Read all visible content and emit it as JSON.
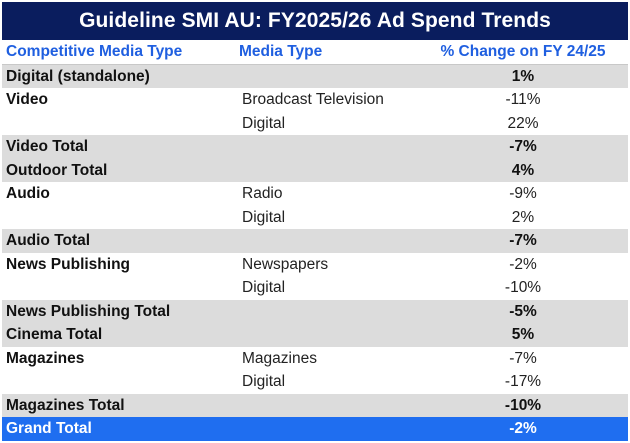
{
  "title": "Guideline SMI AU: FY2025/26 Ad Spend Trends",
  "columns": [
    "Competitive Media Type",
    "Media Type",
    "% Change on FY 24/25"
  ],
  "rows": [
    {
      "type": "total",
      "cells": [
        "Digital (standalone)",
        "",
        "1%"
      ]
    },
    {
      "type": "item",
      "cells": [
        "Video",
        "Broadcast Television",
        "-11%"
      ]
    },
    {
      "type": "item",
      "cells": [
        "",
        "Digital",
        "22%"
      ]
    },
    {
      "type": "total",
      "cells": [
        "Video Total",
        "",
        "-7%"
      ]
    },
    {
      "type": "total",
      "cells": [
        "Outdoor Total",
        "",
        "4%"
      ]
    },
    {
      "type": "item",
      "cells": [
        "Audio",
        "Radio",
        "-9%"
      ]
    },
    {
      "type": "item",
      "cells": [
        "",
        "Digital",
        "2%"
      ]
    },
    {
      "type": "total",
      "cells": [
        "Audio Total",
        "",
        "-7%"
      ]
    },
    {
      "type": "item",
      "cells": [
        "News Publishing",
        "Newspapers",
        "-2%"
      ]
    },
    {
      "type": "item",
      "cells": [
        "",
        "Digital",
        "-10%"
      ]
    },
    {
      "type": "total",
      "cells": [
        "News Publishing Total",
        "",
        "-5%"
      ]
    },
    {
      "type": "total",
      "cells": [
        "Cinema Total",
        "",
        "5%"
      ]
    },
    {
      "type": "item",
      "cells": [
        "Magazines",
        "Magazines",
        "-7%"
      ]
    },
    {
      "type": "item",
      "cells": [
        "",
        "Digital",
        "-17%"
      ]
    },
    {
      "type": "total",
      "cells": [
        "Magazines Total",
        "",
        "-10%"
      ]
    },
    {
      "type": "grand",
      "cells": [
        "Grand Total",
        "",
        "-2%"
      ]
    }
  ]
}
